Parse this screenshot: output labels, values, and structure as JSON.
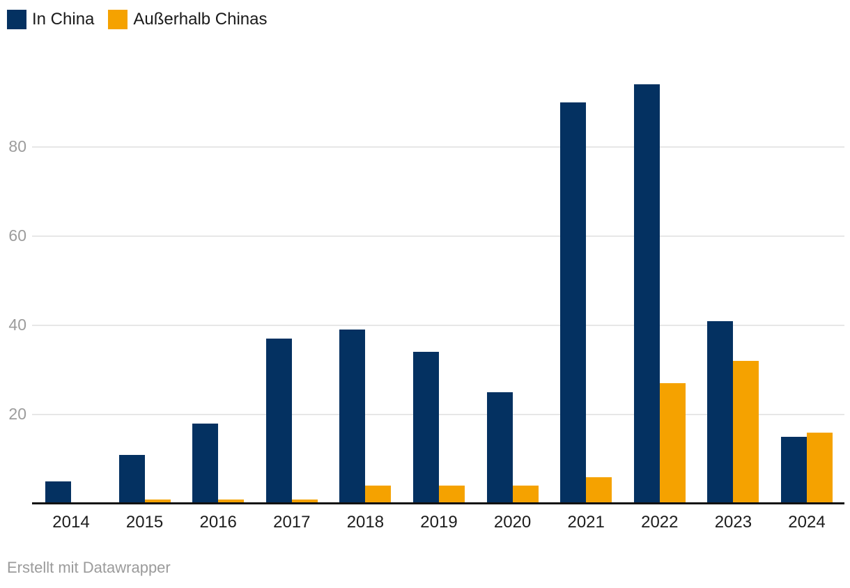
{
  "chart_data": {
    "type": "bar",
    "title": "",
    "categories": [
      "2014",
      "2015",
      "2016",
      "2017",
      "2018",
      "2019",
      "2020",
      "2021",
      "2022",
      "2023",
      "2024"
    ],
    "series": [
      {
        "name": "In China",
        "color": "#043161",
        "values": [
          5,
          11,
          18,
          37,
          39,
          34,
          25,
          90,
          94,
          41,
          15
        ]
      },
      {
        "name": "Außerhalb Chinas",
        "color": "#f5a200",
        "values": [
          0,
          1,
          1,
          1,
          4,
          4,
          4,
          6,
          27,
          32,
          16
        ]
      }
    ],
    "xlabel": "",
    "ylabel": "",
    "ylim": [
      0,
      100
    ],
    "yticks": [
      20,
      40,
      60,
      80
    ],
    "grid": "horizontal",
    "legend_position": "top-left"
  },
  "legend": {
    "items": [
      {
        "label": "In China",
        "color": "#043161"
      },
      {
        "label": "Außerhalb Chinas",
        "color": "#f5a200"
      }
    ]
  },
  "axes": {
    "y_tick_labels": [
      "20",
      "40",
      "60",
      "80"
    ],
    "x_tick_labels": [
      "2014",
      "2015",
      "2016",
      "2017",
      "2018",
      "2019",
      "2020",
      "2021",
      "2022",
      "2023",
      "2024"
    ]
  },
  "footer": {
    "attribution": "Erstellt mit Datawrapper"
  },
  "colors": {
    "in_china": "#043161",
    "outside_china": "#f5a200",
    "gridline": "#e7e7e7",
    "axis_line": "#121212",
    "y_tick_text": "#9c9c9c",
    "x_tick_text": "#1d1d1d",
    "background": "#ffffff"
  }
}
